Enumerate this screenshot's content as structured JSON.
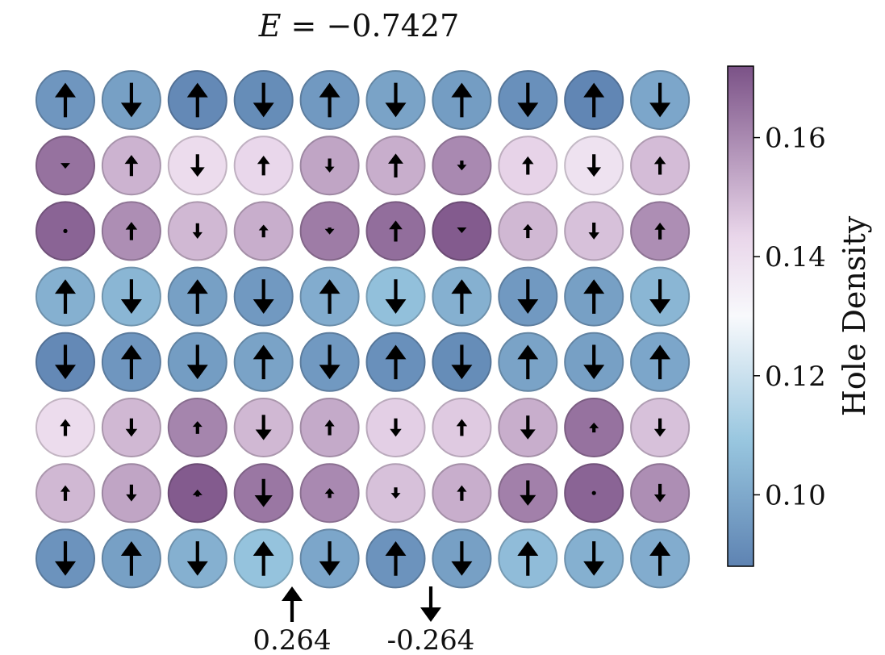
{
  "title": {
    "var": "E",
    "eq": " = ",
    "value": "−0.7427"
  },
  "colors": {
    "cmap_low": "#5e83b2",
    "cmap_mid1": "#98c6df",
    "cmap_mid": "#f8f9fc",
    "cmap_mid2": "#e9d6ea",
    "cmap_high": "#7b5287",
    "arrow": "#000000"
  },
  "chart_data": {
    "type": "heatmap",
    "rows": 8,
    "cols": 10,
    "hole_density": [
      [
        0.094,
        0.097,
        0.09,
        0.091,
        0.095,
        0.098,
        0.096,
        0.092,
        0.089,
        0.099
      ],
      [
        0.165,
        0.151,
        0.141,
        0.143,
        0.154,
        0.152,
        0.16,
        0.144,
        0.139,
        0.149
      ],
      [
        0.168,
        0.159,
        0.15,
        0.152,
        0.163,
        0.166,
        0.17,
        0.15,
        0.148,
        0.159
      ],
      [
        0.102,
        0.104,
        0.097,
        0.095,
        0.101,
        0.107,
        0.102,
        0.095,
        0.097,
        0.104
      ],
      [
        0.09,
        0.094,
        0.096,
        0.098,
        0.095,
        0.092,
        0.091,
        0.098,
        0.097,
        0.099
      ],
      [
        0.141,
        0.15,
        0.161,
        0.15,
        0.153,
        0.145,
        0.146,
        0.152,
        0.165,
        0.148
      ],
      [
        0.15,
        0.154,
        0.17,
        0.164,
        0.16,
        0.148,
        0.152,
        0.162,
        0.168,
        0.159
      ],
      [
        0.093,
        0.097,
        0.102,
        0.108,
        0.099,
        0.093,
        0.097,
        0.106,
        0.102,
        0.101
      ]
    ],
    "spin": [
      [
        0.245,
        -0.245,
        0.245,
        -0.245,
        0.245,
        -0.245,
        0.245,
        -0.245,
        0.245,
        -0.245
      ],
      [
        -0.045,
        0.15,
        -0.16,
        0.14,
        -0.1,
        0.17,
        -0.07,
        0.13,
        -0.16,
        0.13
      ],
      [
        0.0,
        0.13,
        -0.11,
        0.09,
        -0.05,
        0.15,
        -0.03,
        0.1,
        -0.12,
        0.12
      ],
      [
        0.245,
        -0.245,
        0.245,
        -0.245,
        0.245,
        -0.245,
        0.245,
        -0.245,
        0.245,
        -0.245
      ],
      [
        -0.245,
        0.245,
        -0.245,
        0.245,
        -0.245,
        0.245,
        -0.245,
        0.245,
        -0.245,
        0.245
      ],
      [
        0.12,
        -0.13,
        0.09,
        -0.18,
        0.11,
        -0.13,
        0.12,
        -0.17,
        0.07,
        -0.13
      ],
      [
        0.11,
        -0.12,
        0.05,
        -0.2,
        0.07,
        -0.08,
        0.11,
        -0.18,
        0.0,
        -0.13
      ],
      [
        -0.245,
        0.245,
        -0.245,
        0.245,
        -0.245,
        0.245,
        -0.245,
        0.245,
        -0.245,
        0.245
      ]
    ],
    "colorbar": {
      "label": "Hole Density",
      "range": [
        0.088,
        0.172
      ],
      "ticks": [
        0.1,
        0.12,
        0.14,
        0.16
      ],
      "tick_labels": [
        "0.10",
        "0.12",
        "0.14",
        "0.16"
      ]
    },
    "legend": {
      "up_label": "0.264",
      "down_label": "-0.264",
      "max_spin": 0.264
    }
  }
}
